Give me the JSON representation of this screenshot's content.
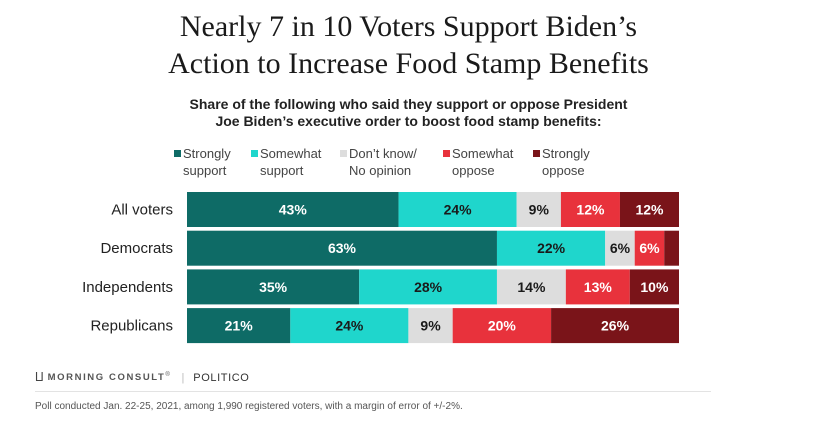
{
  "title_line1": "Nearly 7 in 10 Voters Support Biden’s",
  "title_line2": "Action to Increase Food Stamp Benefits",
  "subtitle_line1": "Share of the following who said they support or oppose President",
  "subtitle_line2": "Joe Biden’s executive order to boost food stamp benefits:",
  "legend": [
    {
      "line1": "Strongly",
      "line2": "support",
      "color": "#0e6b66"
    },
    {
      "line1": "Somewhat",
      "line2": "support",
      "color": "#1fd6cc"
    },
    {
      "line1": "Don’t know/",
      "line2": "No opinion",
      "color": "#dddddd"
    },
    {
      "line1": "Somewhat",
      "line2": "oppose",
      "color": "#e8323c"
    },
    {
      "line1": "Strongly",
      "line2": "oppose",
      "color": "#7a1419"
    }
  ],
  "chart_data": {
    "type": "bar",
    "orientation": "horizontal-stacked-100",
    "categories": [
      "All voters",
      "Democrats",
      "Independents",
      "Republicans"
    ],
    "series": [
      {
        "name": "Strongly support",
        "color": "#0e6b66",
        "values": [
          43,
          63,
          35,
          21
        ]
      },
      {
        "name": "Somewhat support",
        "color": "#1fd6cc",
        "values": [
          24,
          22,
          28,
          24
        ]
      },
      {
        "name": "Don’t know/ No opinion",
        "color": "#dddddd",
        "values": [
          9,
          6,
          14,
          9
        ]
      },
      {
        "name": "Somewhat oppose",
        "color": "#e8323c",
        "values": [
          12,
          6,
          13,
          20
        ]
      },
      {
        "name": "Strongly oppose",
        "color": "#7a1419",
        "values": [
          12,
          3,
          10,
          26
        ]
      }
    ],
    "labels": [
      [
        "43%",
        "24%",
        "9%",
        "12%",
        "12%"
      ],
      [
        "63%",
        "22%",
        "6%",
        "6%",
        ""
      ],
      [
        "35%",
        "28%",
        "14%",
        "13%",
        "10%"
      ],
      [
        "21%",
        "24%",
        "9%",
        "20%",
        "26%"
      ]
    ],
    "label_colors": [
      "#ffffff",
      "#1a1a1a",
      "#1a1a1a",
      "#ffffff",
      "#ffffff"
    ],
    "xlim": [
      0,
      100
    ],
    "legend_position": "top",
    "grid": false
  },
  "footer": {
    "brand1": "MORNING CONSULT",
    "brand1_mark": "®",
    "separator": "|",
    "brand2": "POLITICO",
    "note": "Poll conducted Jan. 22-25, 2021, among 1,990 registered voters, with a margin of error of +/-2%."
  }
}
